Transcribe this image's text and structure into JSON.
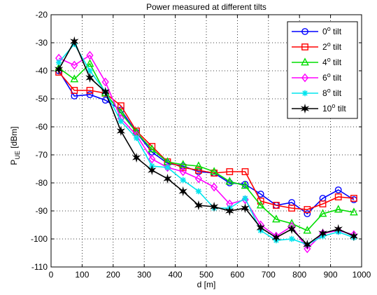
{
  "chart_data": {
    "type": "line",
    "title": "Power measured at different tilts",
    "xlabel": "d [m]",
    "ylabel": {
      "main": "P",
      "sub": "UE",
      "unit": " [dBm]"
    },
    "xlim": [
      0,
      1000
    ],
    "ylim": [
      -110,
      -20
    ],
    "xticks": [
      0,
      100,
      200,
      300,
      400,
      500,
      600,
      700,
      800,
      900,
      1000
    ],
    "yticks": [
      -110,
      -100,
      -90,
      -80,
      -70,
      -60,
      -50,
      -40,
      -30,
      -20
    ],
    "grid": true,
    "legend_position": "top-right",
    "x": [
      25,
      75,
      125,
      175,
      225,
      275,
      325,
      375,
      425,
      475,
      525,
      575,
      625,
      675,
      725,
      775,
      825,
      875,
      925,
      975
    ],
    "series": [
      {
        "label": {
          "num": "0",
          "sup": "o",
          "rest": " tilt"
        },
        "color": "#0000ff",
        "marker": "circle",
        "values": [
          -40,
          -49,
          -48.5,
          -50.5,
          -54,
          -62,
          -69,
          -73,
          -74,
          -76,
          -76.5,
          -80,
          -80.5,
          -84,
          -88,
          -87,
          -91,
          -85.5,
          -82.5,
          -86
        ]
      },
      {
        "label": {
          "num": "2",
          "sup": "o",
          "rest": " tilt"
        },
        "color": "#ff0000",
        "marker": "square",
        "values": [
          -40.5,
          -47,
          -47,
          -48,
          -52.5,
          -61.5,
          -67,
          -72.5,
          -74.5,
          -75.5,
          -76.5,
          -76,
          -76,
          -86.5,
          -88,
          -89,
          -89.5,
          -87.5,
          -85,
          -85.5
        ]
      },
      {
        "label": {
          "num": "4",
          "sup": "o",
          "rest": " tilt"
        },
        "color": "#00dd00",
        "marker": "triangle",
        "values": [
          -39,
          -43,
          -37.5,
          -48,
          -55,
          -62,
          -68,
          -72.5,
          -73.5,
          -74,
          -76,
          -79.5,
          -81,
          -88,
          -93,
          -94.5,
          -97,
          -91,
          -89.5,
          -90.5
        ]
      },
      {
        "label": {
          "num": "6",
          "sup": "o",
          "rest": " tilt"
        },
        "color": "#ff00ff",
        "marker": "diamond",
        "values": [
          -35.5,
          -38,
          -34.5,
          -44,
          -57,
          -63,
          -71.5,
          -74.5,
          -76,
          -78.5,
          -81.5,
          -87.5,
          -86,
          -95,
          -99,
          -95.5,
          -103.5,
          -98,
          -97,
          -98.5
        ]
      },
      {
        "label": {
          "num": "8",
          "sup": "o",
          "rest": " tilt"
        },
        "color": "#00e5ee",
        "marker": "asterisk",
        "values": [
          -37,
          -30.5,
          -40,
          -47.5,
          -58,
          -64,
          -74,
          -74.5,
          -79,
          -83,
          -89,
          -89,
          -85.5,
          -97,
          -100.5,
          -100,
          -102,
          -99,
          -97.5,
          -99.5
        ]
      },
      {
        "label": {
          "num": "10",
          "sup": "o",
          "rest": " tilt"
        },
        "color": "#000000",
        "marker": "hexagram",
        "values": [
          -39.5,
          -29.5,
          -42.5,
          -47.5,
          -61.5,
          -71,
          -75.5,
          -78.5,
          -83,
          -88,
          -88.5,
          -90,
          -89,
          -96,
          -99.5,
          -96.5,
          -102,
          -98,
          -96.5,
          -99
        ]
      }
    ]
  }
}
